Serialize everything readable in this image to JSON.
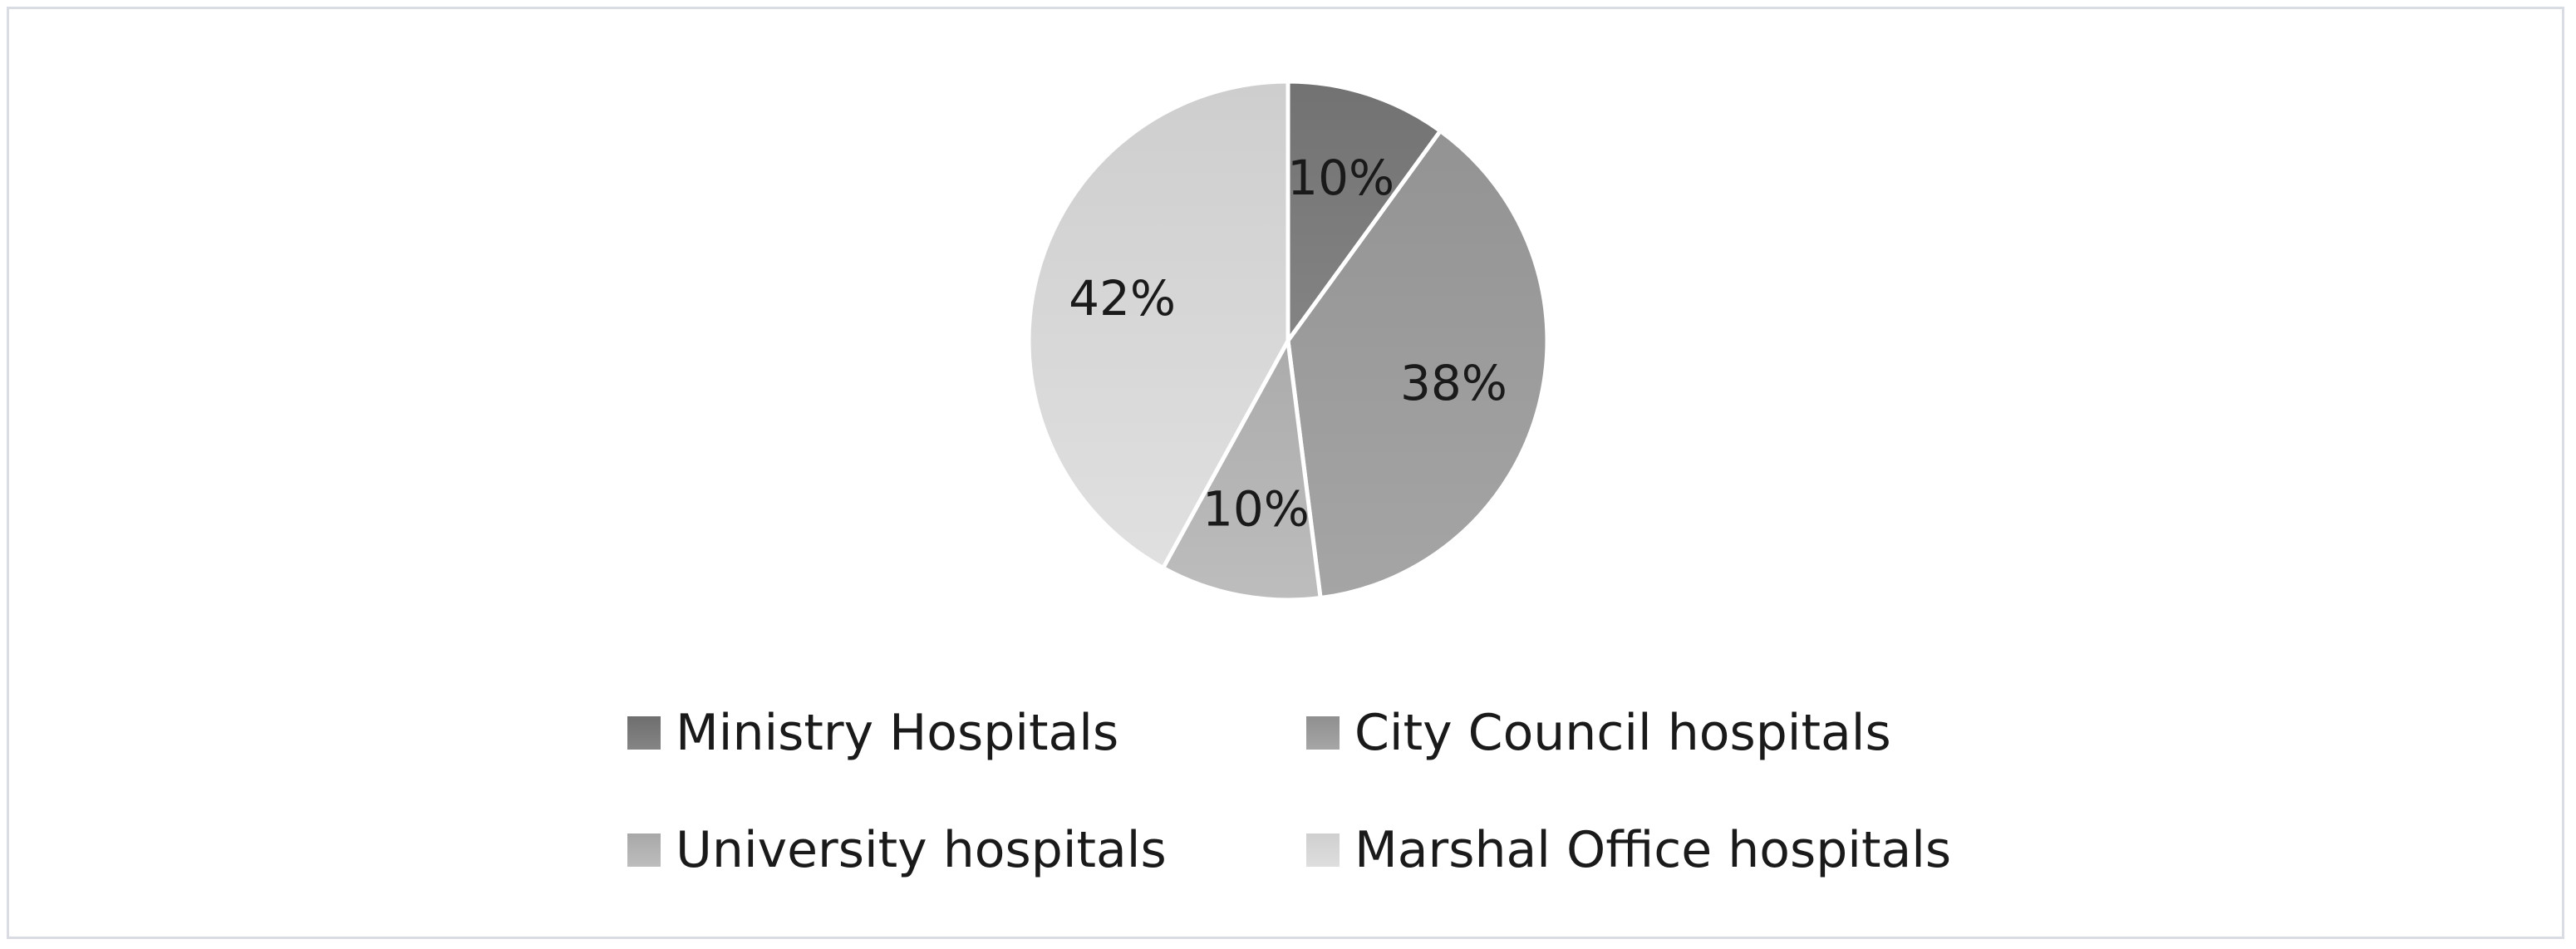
{
  "chart_data": {
    "type": "pie",
    "title": "",
    "categories": [
      "Ministry Hospitals",
      "City Council hospitals",
      "University hospitals",
      "Marshal Office hospitals"
    ],
    "values": [
      10,
      38,
      10,
      42
    ],
    "labels": [
      "10%",
      "38%",
      "10%",
      "42%"
    ],
    "colors": [
      "#7a7a7a",
      "#9b9b9b",
      "#b3b3b3",
      "#d6d6d6"
    ],
    "legend_position": "bottom",
    "start_angle": "12 o'clock, clockwise"
  },
  "legend": {
    "items": [
      {
        "label": "Ministry Hospitals"
      },
      {
        "label": "City Council hospitals"
      },
      {
        "label": "University hospitals"
      },
      {
        "label": "Marshal Office hospitals"
      }
    ]
  }
}
